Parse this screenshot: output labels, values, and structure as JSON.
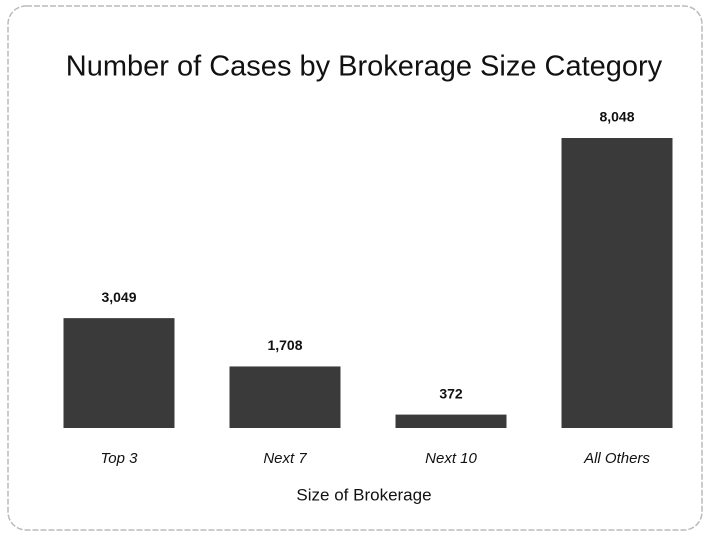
{
  "chart_data": {
    "type": "bar",
    "title": "Number of Cases by Brokerage Size Category",
    "x_label": "Size of Brokerage",
    "categories": [
      "Top 3",
      "Next 7",
      "Next 10",
      "All Others"
    ],
    "values": [
      3049,
      1708,
      372,
      8048
    ],
    "value_labels": [
      "3,049",
      "1,708",
      "372",
      "8,048"
    ],
    "color": "#3a3a3a"
  }
}
